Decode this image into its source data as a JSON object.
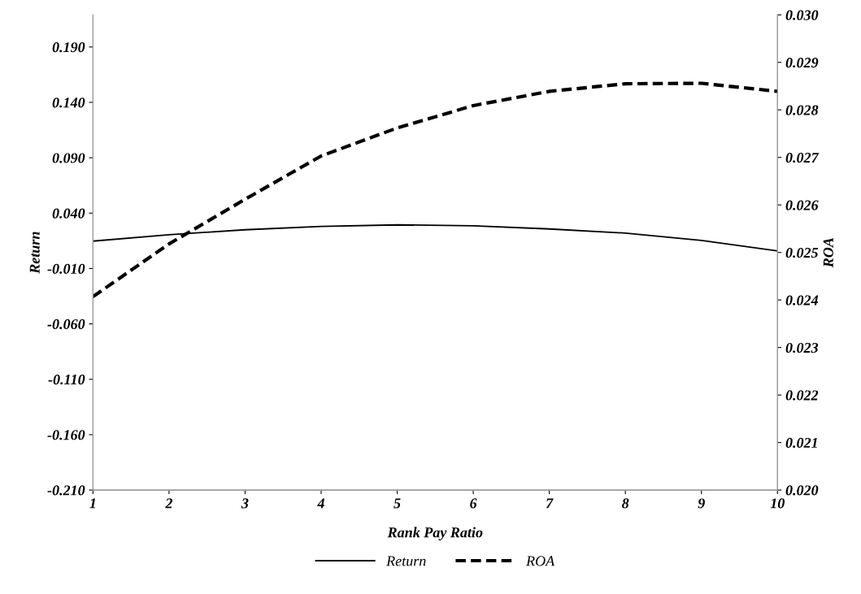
{
  "chart_data": {
    "type": "line",
    "xlabel": "Rank Pay Ratio",
    "ylabel": "Return",
    "y2label": "ROA",
    "x": [
      1,
      2,
      3,
      4,
      5,
      6,
      7,
      8,
      9,
      10
    ],
    "series": [
      {
        "name": "Return",
        "color": "#000000",
        "line_style": "solid",
        "values": [
          0.0147,
          0.0205,
          0.025,
          0.028,
          0.0294,
          0.0286,
          0.0257,
          0.022,
          0.0154,
          0.0059
        ]
      },
      {
        "name": "ROA",
        "color": "#000000",
        "line_style": "dashed",
        "axis": "y2",
        "values": [
          0.02407,
          0.02518,
          0.02612,
          0.02703,
          0.02762,
          0.02809,
          0.02839,
          0.02855,
          0.02856,
          0.02839
        ]
      }
    ],
    "xlim": [
      1,
      10
    ],
    "xticks": [
      1,
      2,
      3,
      4,
      5,
      6,
      7,
      8,
      9,
      10
    ],
    "ylim": [
      -0.21,
      0.219
    ],
    "yticks": [
      {
        "value": -0.21,
        "label": "-0.210"
      },
      {
        "value": -0.16,
        "label": "-0.160"
      },
      {
        "value": -0.11,
        "label": "-0.110"
      },
      {
        "value": -0.06,
        "label": "-0.060"
      },
      {
        "value": -0.01,
        "label": "-0.010"
      },
      {
        "value": 0.04,
        "label": "0.040"
      },
      {
        "value": 0.09,
        "label": "0.090"
      },
      {
        "value": 0.14,
        "label": "0.140"
      },
      {
        "value": 0.19,
        "label": "0.190"
      }
    ],
    "y2lim": [
      0.02,
      0.03
    ],
    "y2ticks": [
      {
        "value": 0.02,
        "label": "0.020"
      },
      {
        "value": 0.021,
        "label": "0.021"
      },
      {
        "value": 0.022,
        "label": "0.022"
      },
      {
        "value": 0.023,
        "label": "0.023"
      },
      {
        "value": 0.024,
        "label": "0.024"
      },
      {
        "value": 0.025,
        "label": "0.025"
      },
      {
        "value": 0.026,
        "label": "0.026"
      },
      {
        "value": 0.027,
        "label": "0.027"
      },
      {
        "value": 0.028,
        "label": "0.028"
      },
      {
        "value": 0.029,
        "label": "0.029"
      },
      {
        "value": 0.03,
        "label": "0.030"
      }
    ],
    "grid": false,
    "legend": "bottom",
    "marker": "none"
  }
}
